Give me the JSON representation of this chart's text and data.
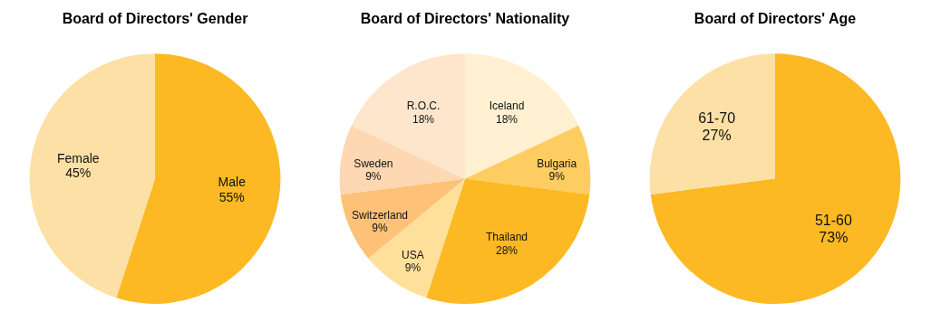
{
  "chart_data": [
    {
      "type": "pie",
      "title": "Board of Directors' Gender",
      "categories": [
        "Male",
        "Female"
      ],
      "values": [
        55,
        45
      ],
      "colors": [
        "#fdb924",
        "#fde0a6"
      ],
      "value_labels": [
        "55%",
        "45%"
      ],
      "legend": false
    },
    {
      "type": "pie",
      "title": "Board of Directors' Nationality",
      "categories": [
        "Iceland",
        "Bulgaria",
        "Thailand",
        "USA",
        "Switzerland",
        "Sweden",
        "R.O.C."
      ],
      "values": [
        18,
        9,
        28,
        9,
        9,
        9,
        18
      ],
      "colors": [
        "#fff0d2",
        "#fecd62",
        "#fdb924",
        "#fee09a",
        "#fdc277",
        "#fdd8b2",
        "#fde6cc"
      ],
      "value_labels": [
        "18%",
        "9%",
        "28%",
        "9%",
        "9%",
        "9%",
        "18%"
      ],
      "legend": false
    },
    {
      "type": "pie",
      "title": "Board of Directors' Age",
      "categories": [
        "51-60",
        "61-70"
      ],
      "values": [
        73,
        27
      ],
      "colors": [
        "#fdb924",
        "#fde0a6"
      ],
      "value_labels": [
        "73%",
        "27%"
      ],
      "legend": false
    }
  ]
}
